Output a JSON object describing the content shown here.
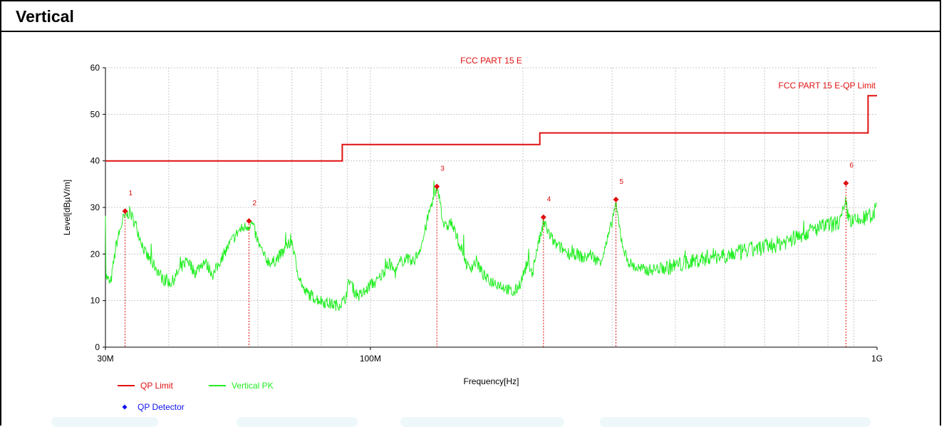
{
  "section": {
    "title": "Vertical"
  },
  "chart_data": {
    "type": "line",
    "title": "FCC PART 15 E",
    "xlabel": "Frequency[Hz]",
    "ylabel": "Level[dBµV/m]",
    "x_scale": "log",
    "xlim": [
      30,
      1000
    ],
    "ylim": [
      0,
      60
    ],
    "x_unit": "MHz",
    "x_major_ticks": [
      {
        "value": 30,
        "label": "30M"
      },
      {
        "value": 100,
        "label": "100M"
      },
      {
        "value": 1000,
        "label": "1G"
      }
    ],
    "y_ticks": [
      0,
      10,
      20,
      30,
      40,
      50,
      60
    ],
    "grid": true,
    "limit_line": {
      "name": "QP Limit",
      "label": "FCC PART 15 E-QP Limit",
      "color": "#e01010",
      "points": [
        [
          30,
          40
        ],
        [
          88,
          40
        ],
        [
          88,
          43.5
        ],
        [
          216,
          43.5
        ],
        [
          216,
          46
        ],
        [
          960,
          46
        ],
        [
          960,
          54
        ],
        [
          1000,
          54
        ]
      ]
    },
    "peak_series": {
      "name": "Vertical PK",
      "color": "#22ee22",
      "anchors": [
        [
          30,
          15.5
        ],
        [
          30.7,
          13.5
        ],
        [
          31.5,
          22
        ],
        [
          32.5,
          27.5
        ],
        [
          33.5,
          29
        ],
        [
          34.5,
          26
        ],
        [
          36,
          20
        ],
        [
          37.5,
          17.5
        ],
        [
          39,
          14.5
        ],
        [
          40.5,
          13.8
        ],
        [
          42,
          16.5
        ],
        [
          43.5,
          19
        ],
        [
          45,
          16
        ],
        [
          47,
          18.5
        ],
        [
          49,
          15.5
        ],
        [
          51,
          19.5
        ],
        [
          53,
          22.5
        ],
        [
          55,
          25
        ],
        [
          57,
          26
        ],
        [
          58.5,
          26.5
        ],
        [
          60,
          22.5
        ],
        [
          62,
          19
        ],
        [
          64,
          18
        ],
        [
          66,
          19.5
        ],
        [
          68,
          21
        ],
        [
          70,
          23
        ],
        [
          71.5,
          17
        ],
        [
          74,
          12
        ],
        [
          78,
          10.5
        ],
        [
          82,
          9.5
        ],
        [
          86,
          9
        ],
        [
          89,
          10
        ],
        [
          91,
          14.5
        ],
        [
          93,
          12
        ],
        [
          95,
          11
        ],
        [
          98,
          12
        ],
        [
          100,
          13.5
        ],
        [
          103,
          14
        ],
        [
          106,
          16
        ],
        [
          109,
          18
        ],
        [
          112,
          16
        ],
        [
          115,
          18.5
        ],
        [
          118,
          19
        ],
        [
          121,
          18
        ],
        [
          124,
          20
        ],
        [
          127,
          23
        ],
        [
          130,
          28
        ],
        [
          133,
          32
        ],
        [
          135,
          34
        ],
        [
          137,
          32.5
        ],
        [
          139,
          27
        ],
        [
          141,
          25.5
        ],
        [
          144,
          27
        ],
        [
          147,
          24.5
        ],
        [
          150,
          22
        ],
        [
          153,
          19.5
        ],
        [
          156,
          17
        ],
        [
          159,
          17.5
        ],
        [
          162,
          18.5
        ],
        [
          166,
          16
        ],
        [
          170,
          14.5
        ],
        [
          175,
          14
        ],
        [
          180,
          13.5
        ],
        [
          186,
          12.5
        ],
        [
          192,
          11.5
        ],
        [
          198,
          14
        ],
        [
          204,
          18
        ],
        [
          209,
          16
        ],
        [
          213,
          21
        ],
        [
          217,
          24
        ],
        [
          219.5,
          26.5
        ],
        [
          222,
          26
        ],
        [
          226,
          24
        ],
        [
          232,
          22
        ],
        [
          240,
          21
        ],
        [
          248,
          20
        ],
        [
          256,
          20
        ],
        [
          264,
          19
        ],
        [
          272,
          20
        ],
        [
          280,
          18.5
        ],
        [
          286,
          19
        ],
        [
          292,
          22
        ],
        [
          298,
          25.5
        ],
        [
          303,
          29.5
        ],
        [
          305,
          30.5
        ],
        [
          308,
          28
        ],
        [
          312,
          24
        ],
        [
          318,
          20
        ],
        [
          325,
          18
        ],
        [
          335,
          17
        ],
        [
          350,
          16.5
        ],
        [
          380,
          17
        ],
        [
          420,
          18
        ],
        [
          470,
          19.5
        ],
        [
          520,
          20
        ],
        [
          570,
          21
        ],
        [
          630,
          22
        ],
        [
          690,
          23.5
        ],
        [
          740,
          25
        ],
        [
          790,
          26
        ],
        [
          830,
          26.5
        ],
        [
          850,
          27.5
        ],
        [
          862,
          29.5
        ],
        [
          868,
          31
        ],
        [
          875,
          28.5
        ],
        [
          890,
          27
        ],
        [
          920,
          27
        ],
        [
          960,
          28
        ],
        [
          1000,
          29.5
        ]
      ]
    },
    "markers": [
      {
        "id": "1",
        "freq": 32.8,
        "level": 29.2
      },
      {
        "id": "2",
        "freq": 57.6,
        "level": 27.1
      },
      {
        "id": "3",
        "freq": 135.3,
        "level": 34.5
      },
      {
        "id": "4",
        "freq": 219.6,
        "level": 27.9
      },
      {
        "id": "5",
        "freq": 305.3,
        "level": 31.7
      },
      {
        "id": "6",
        "freq": 868.3,
        "level": 35.2
      }
    ],
    "marker_color": "#e01010",
    "legend": {
      "placement": "bottom-left",
      "items": [
        {
          "label": "QP Limit",
          "color": "#e01010",
          "kind": "line"
        },
        {
          "label": "Vertical PK",
          "color": "#22ee22",
          "kind": "line"
        },
        {
          "label": "QP Detector",
          "color": "#1010ee",
          "kind": "diamond"
        }
      ]
    }
  }
}
